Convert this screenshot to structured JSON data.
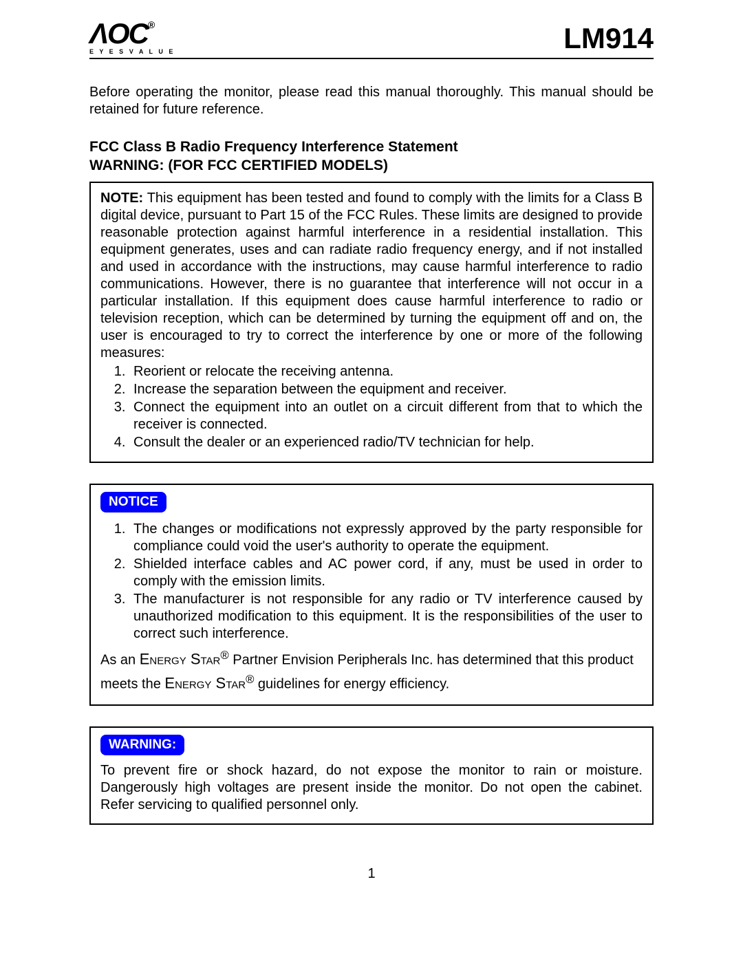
{
  "header": {
    "logo_main": "ΛOC",
    "logo_reg": "®",
    "logo_tagline": "E Y E S   V A L U E",
    "model": "LM914"
  },
  "intro": "Before operating the monitor, please read this manual thoroughly. This manual should be retained for future reference.",
  "fcc_heading_line1": "FCC Class B Radio Frequency Interference Statement",
  "fcc_heading_line2": "WARNING: (FOR FCC CERTIFIED MODELS)",
  "note_box": {
    "label": "NOTE:",
    "body": " This equipment has been tested and found to comply with the limits for a Class B digital device, pursuant to Part 15 of the FCC Rules. These limits are designed to provide reasonable protection against harmful interference in a residential installation. This equipment generates, uses and can radiate radio frequency energy, and if not installed and used in accordance with the instructions, may cause harmful interference to radio communications. However, there is no guarantee that interference will not occur in a particular installation. If this equipment does cause harmful interference to radio or television reception, which can be determined by turning the equipment off and on, the user is encouraged to try to correct the interference by one or more of the following measures:",
    "measures": [
      "Reorient or relocate the receiving antenna.",
      "Increase the separation between the equipment and receiver.",
      "Connect the equipment into an outlet on a circuit different from that to which the receiver is connected.",
      "Consult the dealer or an experienced radio/TV technician for help."
    ]
  },
  "notice_box": {
    "badge": "NOTICE",
    "items": [
      "The changes or modifications not expressly approved by the party responsible for compliance could void the user's authority to operate the equipment.",
      "Shielded interface cables and AC power cord, if any, must be used in order to comply with the emission limits.",
      "The manufacturer is not responsible for any radio or TV interference caused by unauthorized modification to this equipment. It is the responsibilities of the user to correct such interference."
    ],
    "energy_pre": "As an ",
    "energy_star1": "Energy Star",
    "energy_reg": "®",
    "energy_mid": " Partner Envision Peripherals Inc. has determined that this product meets the ",
    "energy_star2": "Energy Star",
    "energy_post": " guidelines for energy efficiency."
  },
  "warning_box": {
    "badge": "WARNING:",
    "body": "To prevent fire or shock hazard, do not expose the monitor to rain or moisture. Dangerously high voltages are present inside the monitor. Do not open the cabinet. Refer servicing to qualified personnel only."
  },
  "page_number": "1",
  "colors": {
    "badge_bg": "#0000ff",
    "badge_fg": "#ffffff",
    "text": "#000000",
    "border": "#000000",
    "background": "#ffffff"
  },
  "fonts": {
    "body_pt": 20,
    "heading_pt": 21,
    "model_pt": 42,
    "badge_pt": 19
  }
}
